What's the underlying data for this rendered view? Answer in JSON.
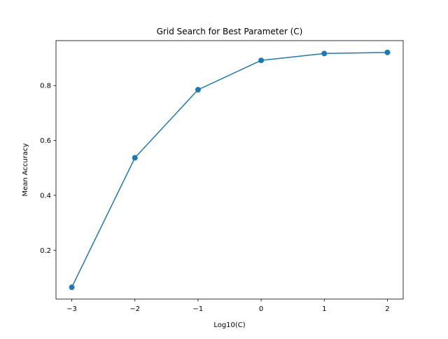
{
  "chart_data": {
    "type": "line",
    "title": "Grid Search for Best Parameter (C)",
    "xlabel": "Log10(C)",
    "ylabel": "Mean Accuracy",
    "x": [
      -3,
      -2,
      -1,
      0,
      1,
      2
    ],
    "series": [
      {
        "values": [
          0.065,
          0.537,
          0.785,
          0.892,
          0.917,
          0.921
        ],
        "color": "#1f77b4",
        "marker": "circle"
      }
    ],
    "xlim": [
      -3.25,
      2.25
    ],
    "ylim": [
      0.022,
      0.964
    ],
    "x_ticks": [
      -3,
      -2,
      -1,
      0,
      1,
      2
    ],
    "x_tick_labels": [
      "−3",
      "−2",
      "−1",
      "0",
      "1",
      "2"
    ],
    "y_ticks": [
      0.2,
      0.4,
      0.6,
      0.8
    ],
    "y_tick_labels": [
      "0.2",
      "0.4",
      "0.6",
      "0.8"
    ],
    "grid": false,
    "legend": "none"
  }
}
